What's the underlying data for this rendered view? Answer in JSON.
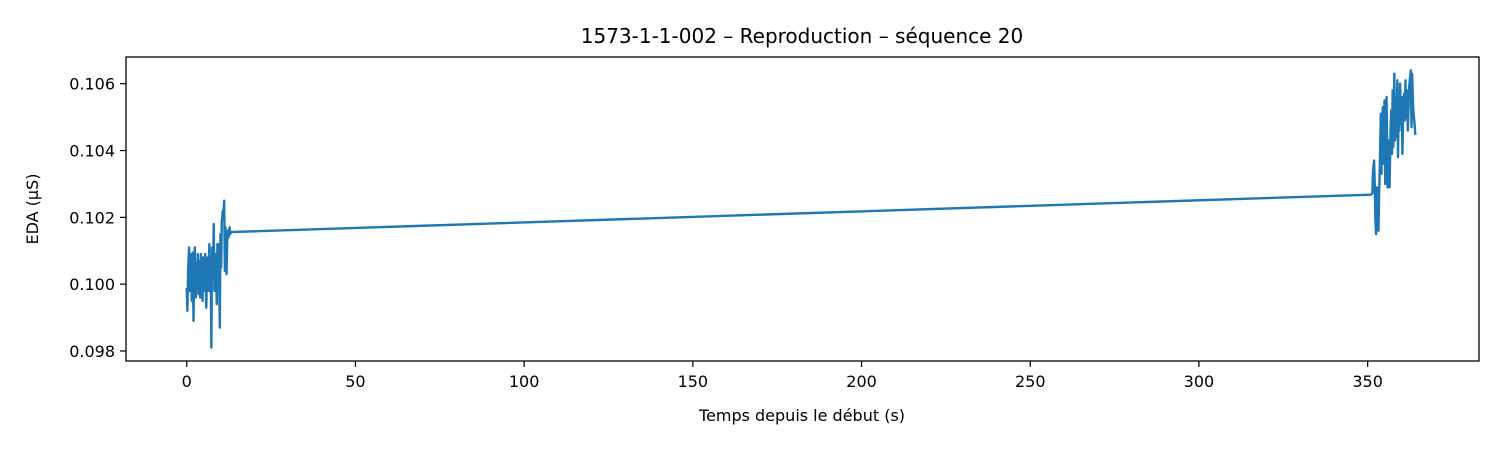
{
  "chart_data": {
    "type": "line",
    "title": "1573-1-1-002 – Reproduction – séquence 20",
    "xlabel": "Temps depuis le début (s)",
    "ylabel": "EDA (µS)",
    "xlim": [
      -18,
      383
    ],
    "ylim": [
      0.0977,
      0.1068
    ],
    "x_ticks": [
      0,
      50,
      100,
      150,
      200,
      250,
      300,
      350
    ],
    "x_tick_labels": [
      "0",
      "50",
      "100",
      "150",
      "200",
      "250",
      "300",
      "350"
    ],
    "y_ticks": [
      0.098,
      0.1,
      0.102,
      0.104,
      0.106
    ],
    "y_tick_labels": [
      "0.098",
      "0.100",
      "0.102",
      "0.104",
      "0.106"
    ],
    "grid": false,
    "legend": "none",
    "series": [
      {
        "color": "#1f77b4",
        "x": [
          0.0,
          0.2,
          0.4,
          0.7,
          0.9,
          1.1,
          1.3,
          1.5,
          1.8,
          2.0,
          2.2,
          2.4,
          2.7,
          2.9,
          3.1,
          3.3,
          3.5,
          3.8,
          4.0,
          4.2,
          4.4,
          4.7,
          4.9,
          5.1,
          5.3,
          5.5,
          5.8,
          6.0,
          6.2,
          6.4,
          6.7,
          6.9,
          7.1,
          7.3,
          7.5,
          7.8,
          8.0,
          8.2,
          8.4,
          8.7,
          8.9,
          9.1,
          9.3,
          9.5,
          9.8,
          10.0,
          10.2,
          10.4,
          10.7,
          10.9,
          11.1,
          11.3,
          11.5,
          11.8,
          12.0,
          12.2,
          12.4,
          12.7,
          12.9,
          13.1,
          351.0,
          351.2,
          351.4,
          351.6,
          351.9,
          352.1,
          352.3,
          352.5,
          352.8,
          353.0,
          353.2,
          353.4,
          353.6,
          353.9,
          354.1,
          354.3,
          354.5,
          354.8,
          355.0,
          355.2,
          355.4,
          355.6,
          355.9,
          356.1,
          356.3,
          356.5,
          356.8,
          357.0,
          357.2,
          357.4,
          357.6,
          357.9,
          358.1,
          358.3,
          358.5,
          358.8,
          359.0,
          359.2,
          359.4,
          359.6,
          359.9,
          360.1,
          360.3,
          360.5,
          360.8,
          361.0,
          361.2,
          361.4,
          361.6,
          361.9,
          362.1,
          362.3,
          362.5,
          362.8,
          363.0,
          363.2,
          363.4,
          363.6,
          363.9,
          364.1
        ],
        "y": [
          0.09985,
          0.0992,
          0.1004,
          0.1011,
          0.0998,
          0.1009,
          0.1002,
          0.0995,
          0.10095,
          0.0989,
          0.1003,
          0.1011,
          0.0996,
          0.1006,
          0.0999,
          0.1009,
          0.0997,
          0.1007,
          0.0996,
          0.1009,
          0.1,
          0.0995,
          0.1008,
          0.1001,
          0.0998,
          0.1009,
          0.0993,
          0.1003,
          0.1008,
          0.0998,
          0.1012,
          0.0998,
          0.1007,
          0.0981,
          0.1011,
          0.1003,
          0.1018,
          0.0998,
          0.1009,
          0.1003,
          0.0994,
          0.1012,
          0.1005,
          0.1012,
          0.0987,
          0.1015,
          0.1005,
          0.1019,
          0.1022,
          0.1021,
          0.1025,
          0.1004,
          0.1017,
          0.1003,
          0.1013,
          0.1016,
          0.1014,
          0.1017,
          0.1015,
          0.10156,
          0.10268,
          0.1027,
          0.10272,
          0.1034,
          0.1037,
          0.103,
          0.1019,
          0.1015,
          0.1029,
          0.1023,
          0.1016,
          0.1027,
          0.1035,
          0.1051,
          0.1033,
          0.1049,
          0.1053,
          0.1036,
          0.1055,
          0.103,
          0.1044,
          0.1056,
          0.1029,
          0.1034,
          0.1043,
          0.1029,
          0.1047,
          0.1052,
          0.1039,
          0.1058,
          0.1041,
          0.1063,
          0.1043,
          0.1056,
          0.1044,
          0.1061,
          0.1038,
          0.1055,
          0.1046,
          0.106,
          0.1048,
          0.1056,
          0.1039,
          0.1051,
          0.1057,
          0.1049,
          0.1061,
          0.105,
          0.1058,
          0.1046,
          0.1052,
          0.1059,
          0.1061,
          0.1064,
          0.1047,
          0.1063,
          0.1055,
          0.1051,
          0.1048,
          0.1045
        ]
      }
    ]
  }
}
